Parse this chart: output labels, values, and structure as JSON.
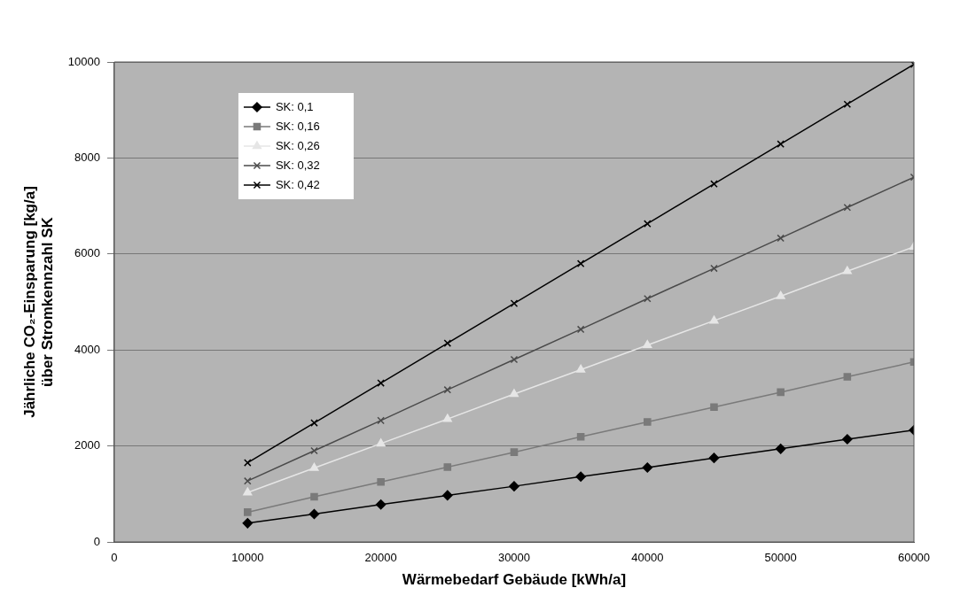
{
  "chart_data": {
    "type": "line",
    "xlabel": "Wärmebedarf Gebäude [kWh/a]",
    "ylabel": "Jährliche CO₂-Einsparung [kg/a]\nüber Stromkennzahl SK",
    "x": [
      10000,
      15000,
      20000,
      25000,
      30000,
      35000,
      40000,
      45000,
      50000,
      55000,
      60000
    ],
    "xlim": [
      0,
      60000
    ],
    "xticks": [
      0,
      10000,
      20000,
      30000,
      40000,
      50000,
      60000
    ],
    "ylim": [
      0,
      10000
    ],
    "yticks": [
      0,
      2000,
      4000,
      6000,
      8000,
      10000
    ],
    "grid": "y",
    "legend": "top left",
    "series": [
      {
        "name": "SK: 0,1",
        "color": "#000000",
        "marker": "diamond",
        "values": [
          390,
          580,
          780,
          970,
          1160,
          1360,
          1550,
          1750,
          1940,
          2140,
          2330
        ]
      },
      {
        "name": "SK: 0,16",
        "color": "#7a7a7a",
        "marker": "square",
        "values": [
          620,
          940,
          1250,
          1560,
          1870,
          2190,
          2500,
          2810,
          3120,
          3440,
          3750
        ]
      },
      {
        "name": "SK: 0,26",
        "color": "#e6e6e6",
        "marker": "triangle",
        "values": [
          1030,
          1540,
          2050,
          2560,
          3080,
          3590,
          4100,
          4610,
          5120,
          5640,
          6150
        ]
      },
      {
        "name": "SK: 0,32",
        "color": "#4a4a4a",
        "marker": "cross",
        "values": [
          1270,
          1900,
          2530,
          3170,
          3800,
          4430,
          5070,
          5700,
          6330,
          6970,
          7600
        ]
      },
      {
        "name": "SK: 0,42",
        "color": "#000000",
        "marker": "cross",
        "values": [
          1650,
          2480,
          3310,
          4140,
          4970,
          5800,
          6630,
          7460,
          8290,
          9120,
          9950
        ]
      }
    ]
  }
}
